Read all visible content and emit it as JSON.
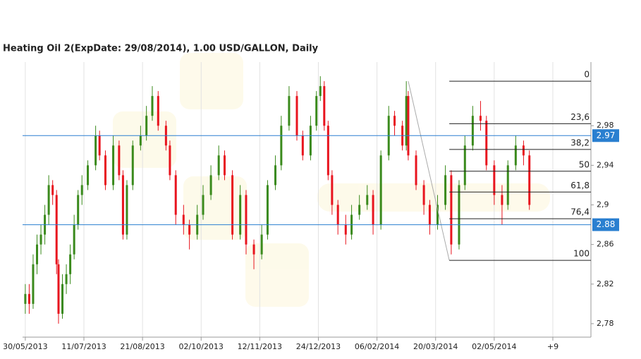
{
  "chart_data": {
    "type": "candlestick",
    "title": "Heating Oil 2(ExpDate: 29/08/2014), 1.00 USD/GALLON, Daily",
    "x": [
      0,
      2,
      4,
      6,
      8,
      10,
      12,
      14,
      16,
      17,
      19,
      21,
      23,
      25,
      27,
      29,
      32,
      36,
      38,
      41,
      45,
      48,
      50,
      52,
      55,
      59,
      62,
      65,
      68,
      72,
      74,
      77,
      81,
      84,
      88,
      91,
      95,
      99,
      102,
      106,
      110,
      113,
      117,
      121,
      124,
      128,
      131,
      135,
      139,
      142,
      146,
      149,
      151,
      153,
      155,
      157,
      160,
      164,
      167,
      171,
      175,
      178,
      182,
      186,
      189,
      193,
      195,
      196,
      200,
      204,
      207,
      211,
      215,
      218,
      222,
      225,
      229,
      233,
      236,
      240,
      244,
      247,
      251,
      255,
      258
    ],
    "open": [
      2.8,
      2.81,
      2.8,
      2.84,
      2.86,
      2.87,
      2.89,
      2.92,
      2.91,
      2.84,
      2.79,
      2.82,
      2.83,
      2.85,
      2.88,
      2.91,
      2.92,
      2.94,
      2.97,
      2.95,
      2.92,
      2.96,
      2.93,
      2.87,
      2.92,
      2.96,
      2.97,
      2.99,
      3.01,
      2.98,
      2.96,
      2.93,
      2.89,
      2.88,
      2.87,
      2.89,
      2.91,
      2.93,
      2.95,
      2.93,
      2.87,
      2.91,
      2.86,
      2.85,
      2.87,
      2.92,
      2.94,
      2.98,
      3.01,
      2.97,
      2.95,
      2.98,
      3.01,
      3.02,
      2.98,
      2.93,
      2.9,
      2.88,
      2.87,
      2.89,
      2.9,
      2.91,
      2.88,
      2.95,
      2.99,
      2.98,
      2.96,
      3.01,
      2.95,
      2.92,
      2.9,
      2.88,
      2.9,
      2.93,
      2.86,
      2.92,
      2.96,
      2.99,
      2.985,
      2.94,
      2.91,
      2.9,
      2.94,
      2.96,
      2.95
    ],
    "high": [
      2.82,
      2.82,
      2.85,
      2.87,
      2.88,
      2.9,
      2.93,
      2.925,
      2.915,
      2.845,
      2.83,
      2.84,
      2.86,
      2.89,
      2.915,
      2.93,
      2.945,
      2.98,
      2.975,
      2.955,
      2.97,
      2.965,
      2.935,
      2.925,
      2.965,
      2.98,
      3.0,
      3.02,
      3.015,
      2.985,
      2.965,
      2.935,
      2.9,
      2.885,
      2.9,
      2.92,
      2.94,
      2.96,
      2.955,
      2.935,
      2.92,
      2.915,
      2.865,
      2.88,
      2.925,
      2.95,
      2.99,
      3.02,
      3.015,
      2.975,
      2.99,
      3.015,
      3.03,
      3.025,
      2.985,
      2.935,
      2.905,
      2.89,
      2.9,
      2.91,
      2.92,
      2.915,
      2.955,
      3.0,
      2.995,
      2.985,
      3.025,
      3.015,
      2.955,
      2.925,
      2.905,
      2.91,
      2.94,
      2.935,
      2.925,
      2.97,
      3.0,
      3.005,
      2.99,
      2.945,
      2.92,
      2.945,
      2.97,
      2.965,
      2.955
    ],
    "low": [
      2.79,
      2.79,
      2.795,
      2.83,
      2.85,
      2.86,
      2.88,
      2.9,
      2.83,
      2.78,
      2.785,
      2.81,
      2.82,
      2.845,
      2.875,
      2.9,
      2.915,
      2.935,
      2.945,
      2.915,
      2.915,
      2.925,
      2.865,
      2.865,
      2.915,
      2.955,
      2.965,
      2.985,
      2.975,
      2.955,
      2.925,
      2.88,
      2.87,
      2.855,
      2.865,
      2.885,
      2.905,
      2.925,
      2.925,
      2.865,
      2.865,
      2.85,
      2.835,
      2.845,
      2.865,
      2.915,
      2.935,
      2.975,
      2.965,
      2.945,
      2.945,
      2.975,
      3.005,
      2.975,
      2.925,
      2.89,
      2.87,
      2.86,
      2.865,
      2.885,
      2.895,
      2.87,
      2.875,
      2.945,
      2.97,
      2.955,
      2.955,
      2.945,
      2.915,
      2.89,
      2.87,
      2.875,
      2.895,
      2.85,
      2.855,
      2.915,
      2.955,
      2.975,
      2.935,
      2.9,
      2.88,
      2.895,
      2.935,
      2.94,
      2.895
    ],
    "close": [
      2.81,
      2.8,
      2.84,
      2.86,
      2.87,
      2.89,
      2.92,
      2.91,
      2.84,
      2.79,
      2.82,
      2.83,
      2.85,
      2.88,
      2.91,
      2.92,
      2.94,
      2.97,
      2.95,
      2.92,
      2.96,
      2.93,
      2.87,
      2.92,
      2.96,
      2.97,
      2.99,
      3.01,
      2.98,
      2.96,
      2.93,
      2.89,
      2.88,
      2.87,
      2.89,
      2.91,
      2.93,
      2.95,
      2.93,
      2.87,
      2.91,
      2.86,
      2.85,
      2.87,
      2.92,
      2.94,
      2.98,
      3.01,
      2.97,
      2.95,
      2.98,
      3.01,
      3.02,
      2.98,
      2.93,
      2.9,
      2.88,
      2.87,
      2.89,
      2.9,
      2.91,
      2.88,
      2.95,
      2.99,
      2.98,
      2.96,
      3.01,
      2.95,
      2.92,
      2.9,
      2.88,
      2.9,
      2.93,
      2.86,
      2.92,
      2.96,
      2.99,
      2.985,
      2.94,
      2.91,
      2.9,
      2.94,
      2.96,
      2.95,
      2.9
    ],
    "up_color": "#3a8a1c",
    "down_color": "#e8141e",
    "xlim": [
      -1.4,
      289.5
    ],
    "xticks": [
      {
        "value": 0,
        "label": "30/05/2013"
      },
      {
        "value": 30,
        "label": "11/07/2013"
      },
      {
        "value": 60,
        "label": "21/08/2013"
      },
      {
        "value": 90,
        "label": "02/10/2013"
      },
      {
        "value": 120,
        "label": "12/11/2013"
      },
      {
        "value": 150,
        "label": "24/12/2013"
      },
      {
        "value": 180,
        "label": "06/02/2014"
      },
      {
        "value": 210,
        "label": "20/03/2014"
      },
      {
        "value": 240,
        "label": "02/05/2014"
      },
      {
        "value": 270,
        "label": "+9"
      }
    ],
    "ylim": [
      2.7664,
      3.0443
    ],
    "yticks": [
      {
        "value": 2.78,
        "label": "2,78"
      },
      {
        "value": 2.82,
        "label": "2,82"
      },
      {
        "value": 2.86,
        "label": "2,86"
      },
      {
        "value": 2.9,
        "label": "2,9"
      },
      {
        "value": 2.94,
        "label": "2,94"
      },
      {
        "value": 2.98,
        "label": "2,98"
      }
    ],
    "grid": true,
    "levels": [
      {
        "value": 2.97,
        "label": "2.97"
      },
      {
        "value": 2.88,
        "label": "2.88"
      }
    ],
    "level_color": "#2a7fd0",
    "trendline": {
      "x": [
        196,
        217
      ],
      "y": [
        3.025,
        2.844
      ]
    },
    "fibonacci": {
      "x_start": 217,
      "levels": [
        {
          "label": "0",
          "value": 3.025
        },
        {
          "label": "23,6",
          "value": 2.982
        },
        {
          "label": "38,2",
          "value": 2.956
        },
        {
          "label": "50",
          "value": 2.934
        },
        {
          "label": "61,8",
          "value": 2.913
        },
        {
          "label": "76,4",
          "value": 2.886
        },
        {
          "label": "100",
          "value": 2.844
        }
      ]
    }
  }
}
